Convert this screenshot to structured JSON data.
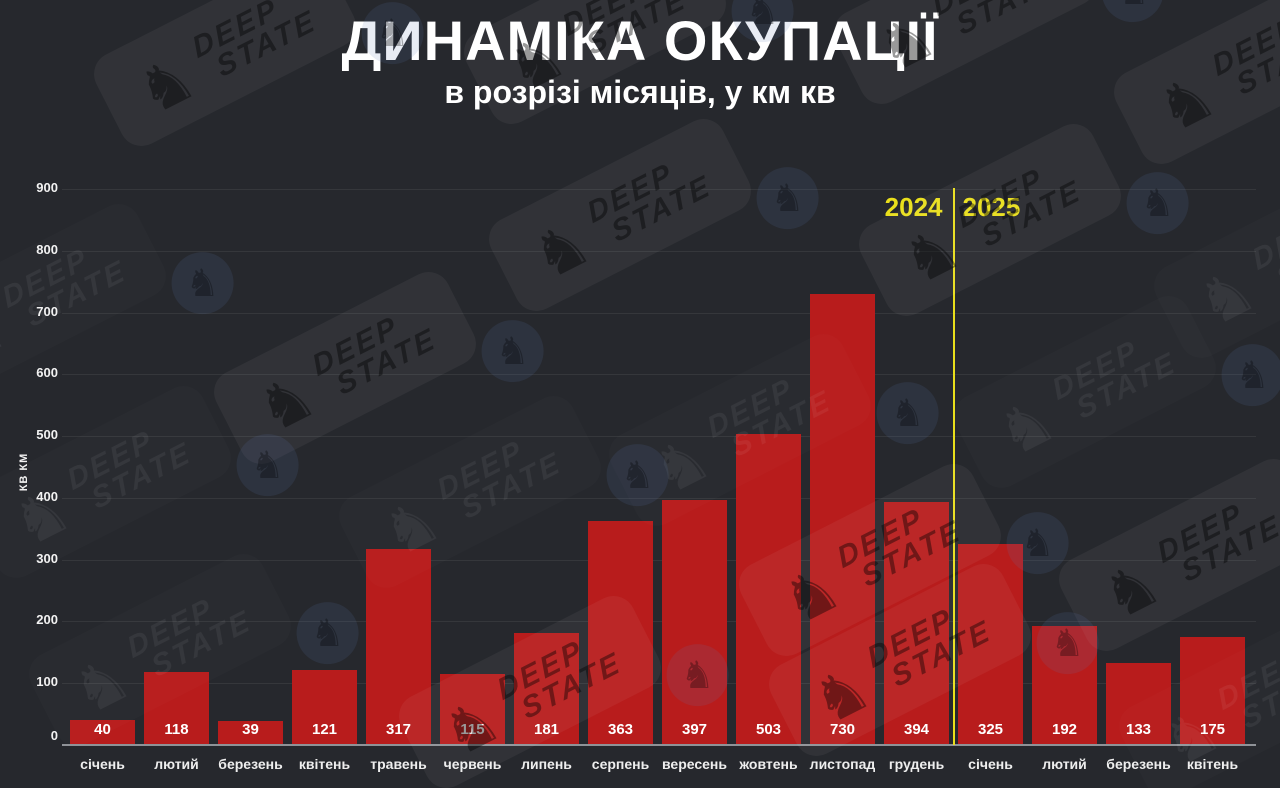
{
  "title": "ДИНАМІКА ОКУПАЦІЇ",
  "subtitle": "в розрізі місяців, у км кв",
  "chart_data": {
    "type": "bar",
    "title": "ДИНАМІКА ОКУПАЦІЇ",
    "subtitle": "в розрізі місяців, у км кв",
    "xlabel": "",
    "ylabel": "КВ КМ",
    "ylim": [
      0,
      900
    ],
    "yticks": [
      0,
      100,
      200,
      300,
      400,
      500,
      600,
      700,
      800,
      900
    ],
    "grid": true,
    "legend": "none",
    "categories": [
      "січень",
      "лютий",
      "березень",
      "квітень",
      "травень",
      "червень",
      "липень",
      "серпень",
      "вересень",
      "жовтень",
      "листопад",
      "грудень",
      "січень",
      "лютий",
      "березень",
      "квітень"
    ],
    "values": [
      40,
      118,
      39,
      121,
      317,
      115,
      181,
      363,
      397,
      503,
      730,
      394,
      325,
      192,
      133,
      175
    ],
    "year_left": "2024",
    "year_right": "2025",
    "divider_after_index": 11,
    "colors": {
      "background": "#26282d",
      "bar": "#b81c1c",
      "divider": "#e9df1b",
      "year_label": "#e9df1b",
      "value_label": "#ffffff",
      "axis_line": "#8f9297",
      "grid_line": "rgba(255,255,255,0.07)",
      "tick_label": "#f2f2f2"
    }
  },
  "watermark": {
    "brand_line1": "DEEP",
    "brand_line2": "STATE",
    "knight_icon": "chess-knight-icon"
  }
}
